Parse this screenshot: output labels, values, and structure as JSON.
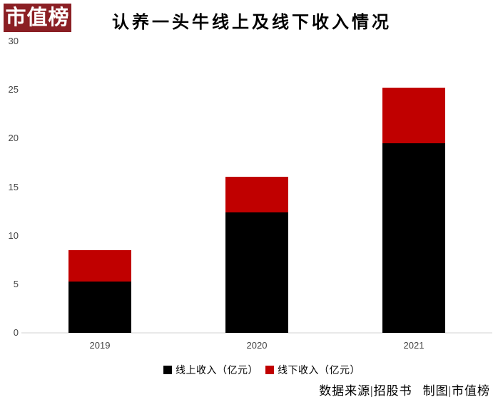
{
  "logo": {
    "text": "市值榜",
    "bg_color": "#8b1f24",
    "text_color": "#ffffff"
  },
  "chart_data": {
    "type": "bar",
    "stacked": true,
    "title": "认养一头牛线上及线下收入情况",
    "categories": [
      "2019",
      "2020",
      "2021"
    ],
    "series": [
      {
        "name": "线上收入（亿元）",
        "color": "#000000",
        "values": [
          5.3,
          12.4,
          19.5
        ]
      },
      {
        "name": "线下收入（亿元）",
        "color": "#c00000",
        "values": [
          3.2,
          3.7,
          5.7
        ]
      }
    ],
    "ylim": [
      0,
      30
    ],
    "y_ticks": [
      30,
      25,
      20,
      15,
      10,
      5,
      0
    ],
    "grid": false,
    "legend_position": "bottom"
  },
  "footer": {
    "source": "数据来源|招股书",
    "credit": "制图|市值榜"
  }
}
